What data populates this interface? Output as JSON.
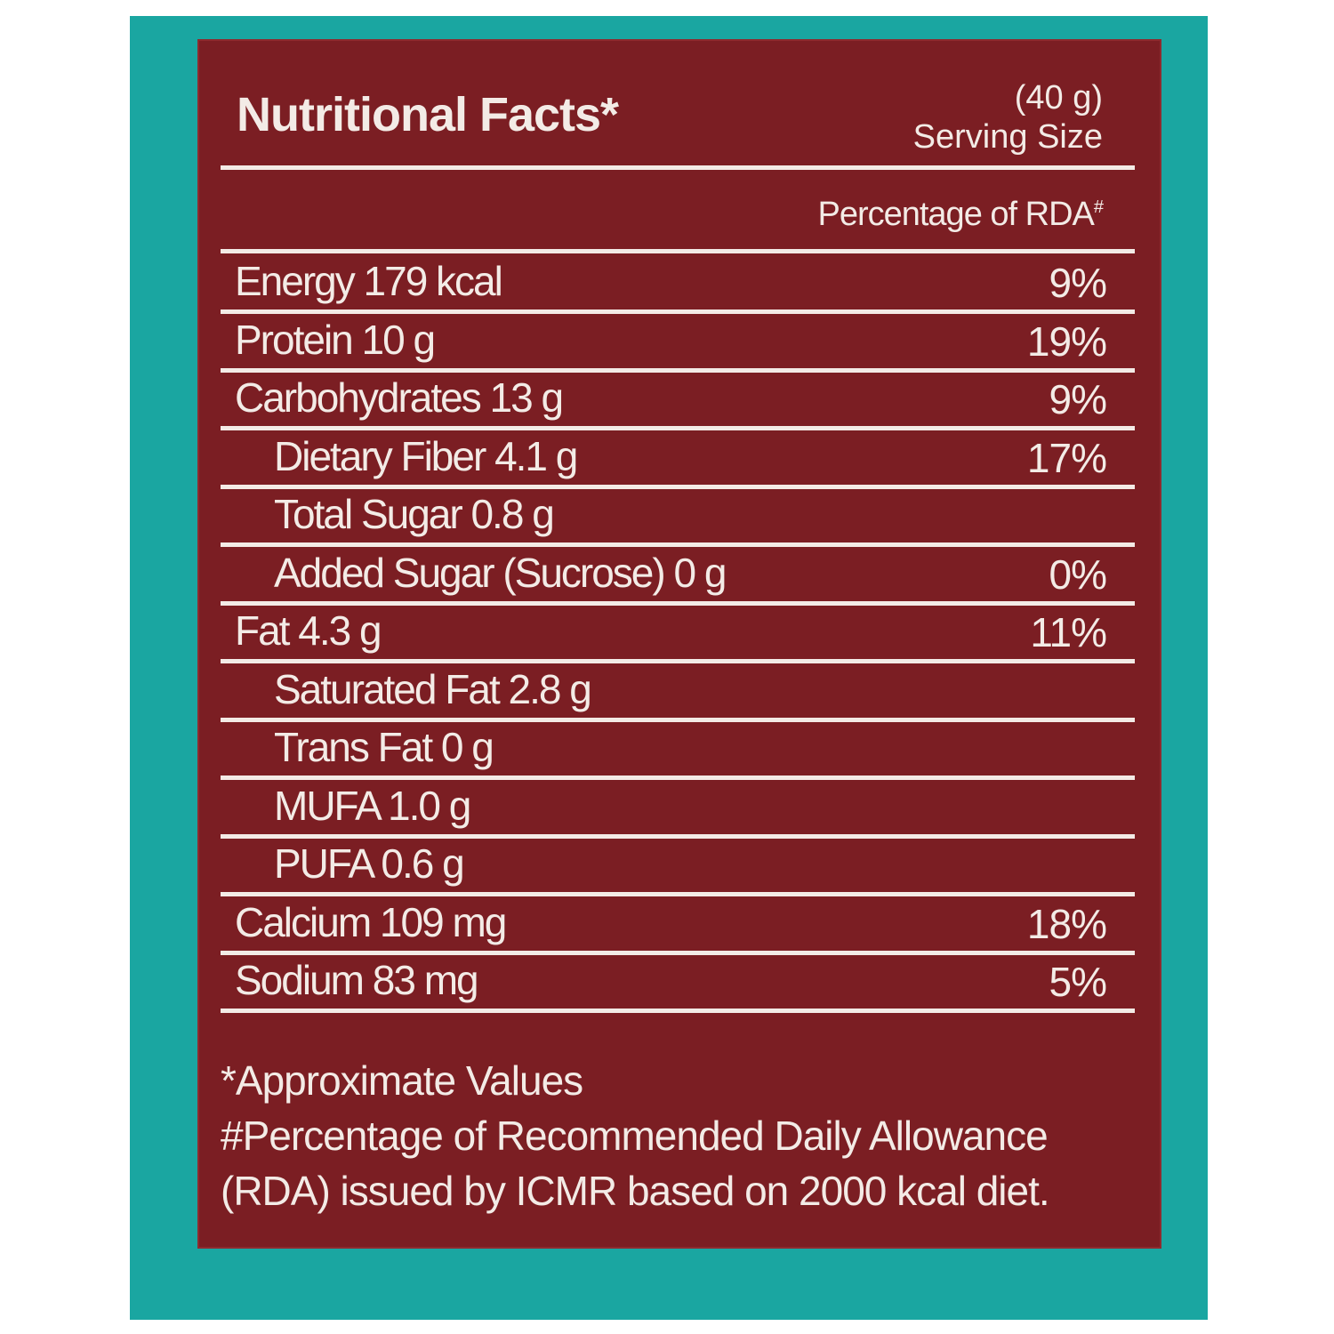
{
  "panel": {
    "title": "Nutritional Facts*",
    "serving_amount": "(40 g)",
    "serving_label": "Serving Size",
    "rda_header": "Percentage of RDA",
    "rda_header_mark": "#"
  },
  "nutrients": [
    {
      "label": "Energy 179 kcal",
      "pct": "9%",
      "indent": false
    },
    {
      "label": "Protein 10 g",
      "pct": "19%",
      "indent": false
    },
    {
      "label": "Carbohydrates 13 g",
      "pct": "9%",
      "indent": false
    },
    {
      "label": "Dietary Fiber 4.1 g",
      "pct": "17%",
      "indent": true
    },
    {
      "label": "Total Sugar 0.8 g",
      "pct": "",
      "indent": true
    },
    {
      "label": "Added Sugar (Sucrose) 0 g",
      "pct": "0%",
      "indent": true
    },
    {
      "label": "Fat 4.3 g",
      "pct": "11%",
      "indent": false
    },
    {
      "label": "Saturated Fat 2.8 g",
      "pct": "",
      "indent": true
    },
    {
      "label": "Trans Fat 0 g",
      "pct": "",
      "indent": true
    },
    {
      "label": "MUFA 1.0 g",
      "pct": "",
      "indent": true
    },
    {
      "label": "PUFA 0.6 g",
      "pct": "",
      "indent": true
    },
    {
      "label": "Calcium 109 mg",
      "pct": "18%",
      "indent": false
    },
    {
      "label": "Sodium 83 mg",
      "pct": "5%",
      "indent": false
    }
  ],
  "footnotes": {
    "line1": "*Approximate Values",
    "line2": "#Percentage of Recommended Daily Allowance",
    "line3": "(RDA) issued by ICMR based on 2000 kcal diet."
  },
  "colors": {
    "background_teal": "#1aa6a1",
    "panel_red": "#7b1e23",
    "text": "#f3ebe6"
  }
}
